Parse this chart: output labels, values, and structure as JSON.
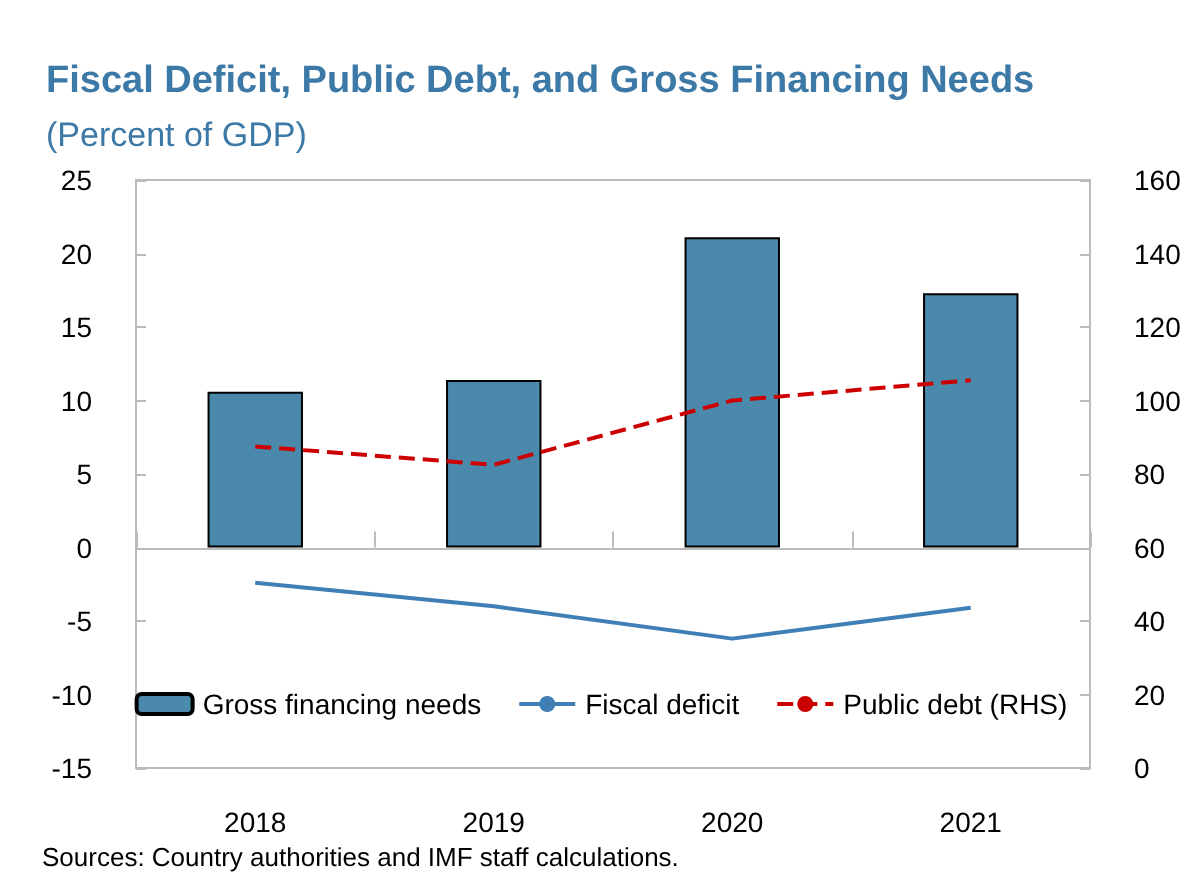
{
  "chart_data": {
    "type": "bar",
    "title": "Fiscal Deficit, Public Debt, and Gross Financing Needs",
    "subtitle": "(Percent of GDP)",
    "categories": [
      "2018",
      "2019",
      "2020",
      "2021"
    ],
    "series": [
      {
        "name": "Gross financing needs",
        "color": "#4a89ac",
        "values": [
          10.6,
          11.4,
          21.1,
          17.3
        ]
      },
      {
        "name": "Fiscal deficit",
        "type": "line",
        "color": "#3f7fb5",
        "line_style": "solid",
        "values": [
          -2.4,
          -4.0,
          -6.2,
          -4.1
        ]
      },
      {
        "name": "Public debt (RHS)",
        "type": "line",
        "axis": "y2",
        "color": "#cc0000",
        "line_style": "dashed",
        "values": [
          87.5,
          82.5,
          100,
          105.5
        ]
      }
    ],
    "ylim": [
      -15,
      25
    ],
    "yticks": [
      -15,
      -10,
      -5,
      0,
      5,
      10,
      15,
      20,
      25
    ],
    "y2lim": [
      0,
      160
    ],
    "y2ticks": [
      0,
      20,
      40,
      60,
      80,
      100,
      120,
      140,
      160
    ],
    "legend": "bottom",
    "marker": "none",
    "annotations": [
      "Sources: Country authorities and IMF staff calculations."
    ]
  }
}
